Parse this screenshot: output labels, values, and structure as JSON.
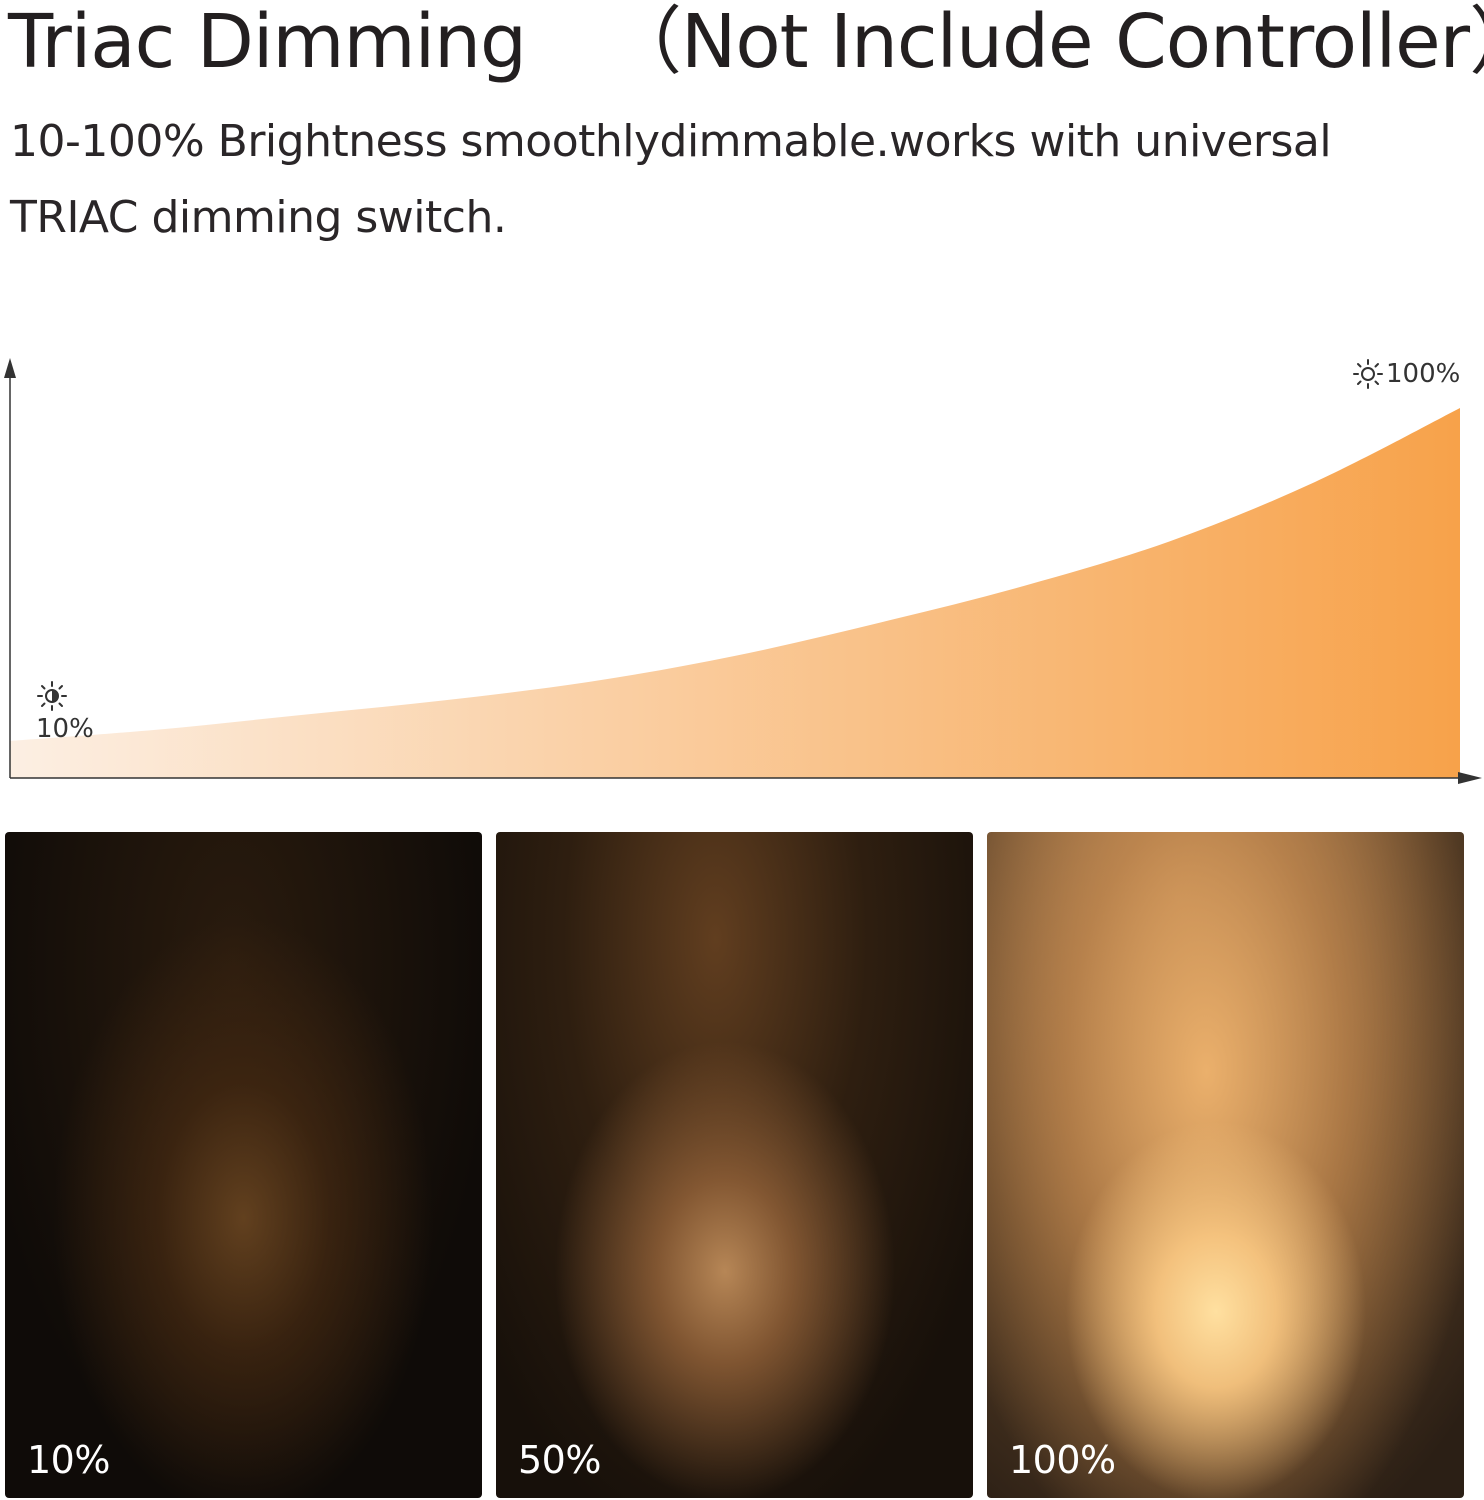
{
  "header": {
    "title": "Triac Dimming",
    "title_note": "（Not Include Controller）",
    "description": "10-100% Brightness smoothlydimmable.works with universal TRIAC dimming switch."
  },
  "chart_data": {
    "type": "area",
    "x": [
      0,
      10,
      20,
      30,
      40,
      50,
      60,
      70,
      80,
      90,
      100
    ],
    "values": [
      10,
      13,
      17,
      21,
      26,
      33,
      42,
      52,
      64,
      80,
      100
    ],
    "ylim": [
      0,
      100
    ],
    "grid": false,
    "fill_colors": [
      "#fcefe3",
      "#f7a24a"
    ],
    "max_label": "100%",
    "min_label": "10%",
    "max_icon": "sun-icon",
    "min_icon": "half-sun-icon"
  },
  "panels": [
    {
      "label": "10%",
      "brightness": 10
    },
    {
      "label": "50%",
      "brightness": 50
    },
    {
      "label": "100%",
      "brightness": 100
    }
  ]
}
